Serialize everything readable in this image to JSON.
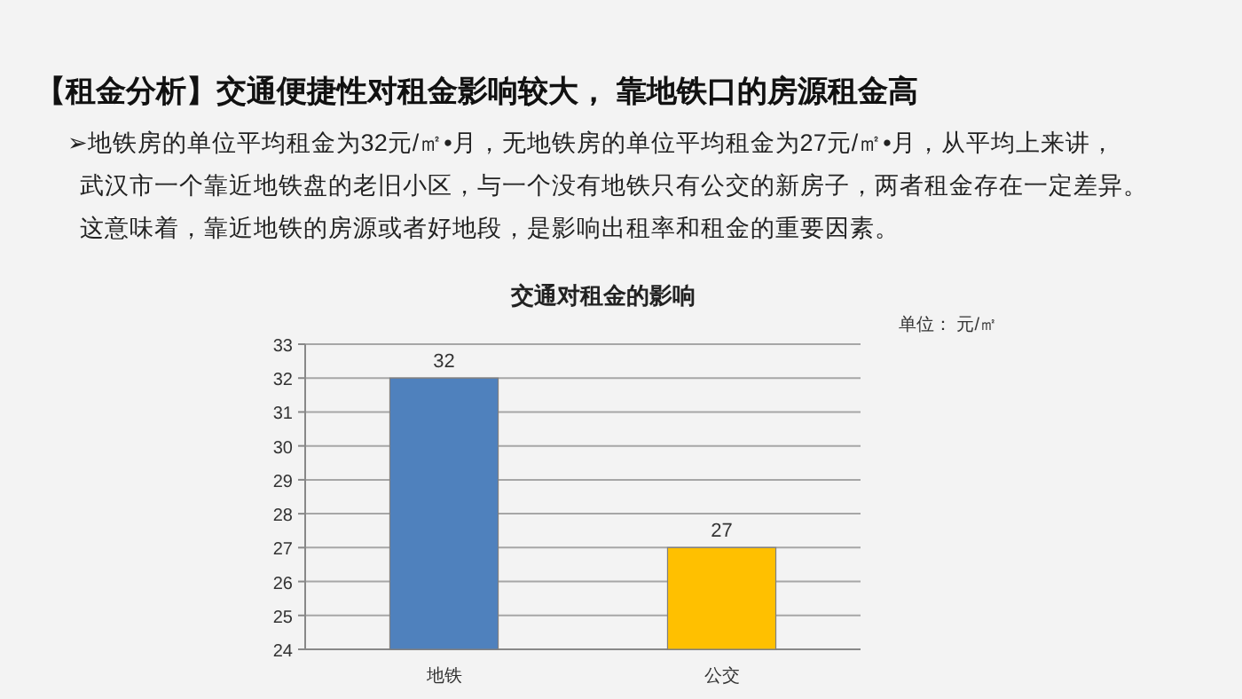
{
  "chart_data": {
    "type": "bar",
    "title": "交通对租金的影响",
    "annotations": [
      "【租金分析】交通便捷性对租金影响较大， 靠地铁口的房源租金高",
      "➢地铁房的单位平均租金为32元/㎡•月，无地铁房的单位平均租金为27元/㎡•月，从平均上来讲，",
      "武汉市一个靠近地铁盘的老旧小区，与一个没有地铁只有公交的新房子，两者租金存在一定差异。",
      "这意味着，靠近地铁的房源或者好地段，是影响出租率和租金的重要因素。",
      "单位：  元/㎡"
    ],
    "categories": [
      "地铁",
      "公交"
    ],
    "values": [
      32,
      27
    ],
    "colors": [
      "#4f81bd",
      "#ffc000"
    ],
    "ylim": [
      24,
      33
    ],
    "yticks": [
      24,
      25,
      26,
      27,
      28,
      29,
      30,
      31,
      32,
      33
    ],
    "grid": "y",
    "data_labels": true
  }
}
